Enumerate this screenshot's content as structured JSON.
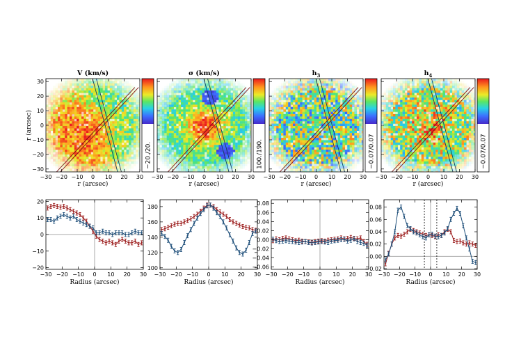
{
  "chart_data": {
    "maps": [
      {
        "title": "V (km/s)",
        "xlabel": "r (arcsec)",
        "ylabel": "r (arcsec)",
        "xlim": [
          -30,
          30
        ],
        "ylim": [
          -32,
          32
        ],
        "xticks": [
          "-30",
          "-20",
          "-10",
          "0",
          "10",
          "20",
          "30"
        ],
        "yticks": [
          "-30",
          "-20",
          "-10",
          "0",
          "10",
          "20",
          "30"
        ],
        "colorbar_label": "−20./20.",
        "pattern": "vel"
      },
      {
        "title": "σ (km/s)",
        "xlabel": "r (arcsec)",
        "ylabel": "",
        "xlim": [
          -30,
          30
        ],
        "ylim": [
          -32,
          32
        ],
        "xticks": [
          "-30",
          "-20",
          "-10",
          "0",
          "10",
          "20",
          "30"
        ],
        "yticks": [],
        "colorbar_label": "100./190.",
        "pattern": "sigma"
      },
      {
        "title": "h3",
        "xlabel": "r (arcsec)",
        "ylabel": "",
        "xlim": [
          -30,
          30
        ],
        "ylim": [
          -32,
          32
        ],
        "xticks": [
          "-30",
          "-20",
          "-10",
          "0",
          "10",
          "20",
          "30"
        ],
        "yticks": [],
        "colorbar_label": "−0.07/0.07",
        "pattern": "h3"
      },
      {
        "title": "h4",
        "xlabel": "r (arcsec)",
        "ylabel": "",
        "xlim": [
          -30,
          30
        ],
        "ylim": [
          -32,
          32
        ],
        "xticks": [
          "-30",
          "-20",
          "-10",
          "0",
          "10",
          "20",
          "30"
        ],
        "yticks": [],
        "colorbar_label": "−0.07/0.07",
        "pattern": "h4"
      }
    ],
    "profiles": [
      {
        "type": "line",
        "xlabel": "Radius (arcsec)",
        "xlim": [
          -30,
          30
        ],
        "ylim": [
          -21,
          21
        ],
        "xticks": [
          -30,
          -20,
          -10,
          0,
          10,
          20,
          30
        ],
        "yticks": [
          -20,
          -10,
          0,
          10,
          20
        ],
        "ytick_labels": [
          "-20",
          "-10",
          "0",
          "10",
          "20"
        ],
        "zero_line": true,
        "vlines": [],
        "series": [
          {
            "color": "#9b1b1b",
            "x": [
              -29,
              -27,
              -25,
              -23,
              -21,
              -19,
              -17,
              -15,
              -13,
              -11,
              -9,
              -7,
              -5,
              -3,
              -1,
              1,
              3,
              5,
              7,
              9,
              11,
              13,
              15,
              17,
              19,
              21,
              23,
              25,
              27,
              29
            ],
            "y": [
              16,
              17,
              17.5,
              17,
              16.5,
              17,
              16,
              15,
              14,
              13,
              12,
              10,
              8,
              5,
              2,
              -1,
              -3,
              -4,
              -5,
              -4,
              -5,
              -6,
              -4,
              -3,
              -4,
              -5,
              -5,
              -4,
              -6,
              -5
            ]
          },
          {
            "color": "#1f4f7a",
            "x": [
              -29,
              -27,
              -25,
              -23,
              -21,
              -19,
              -17,
              -15,
              -13,
              -11,
              -9,
              -7,
              -5,
              -3,
              -1,
              1,
              3,
              5,
              7,
              9,
              11,
              13,
              15,
              17,
              19,
              21,
              23,
              25,
              27,
              29
            ],
            "y": [
              9,
              9,
              8,
              10,
              11,
              12,
              11,
              10,
              11,
              9,
              8,
              7,
              6,
              5,
              4,
              1,
              1,
              2,
              1,
              1,
              0,
              1,
              1,
              1,
              0,
              0,
              1,
              2,
              1,
              1
            ]
          }
        ]
      },
      {
        "type": "line",
        "xlabel": "Radius (arcsec)",
        "xlim": [
          -30,
          30
        ],
        "ylim": [
          98,
          189
        ],
        "xticks": [
          -30,
          -20,
          -10,
          0,
          10,
          20,
          30
        ],
        "yticks": [
          100,
          120,
          140,
          160,
          180
        ],
        "ytick_labels": [
          "100",
          "120",
          "140",
          "160",
          "180"
        ],
        "zero_line": false,
        "vlines": [],
        "series": [
          {
            "color": "#9b1b1b",
            "x": [
              -29,
              -27,
              -25,
              -23,
              -21,
              -19,
              -17,
              -15,
              -13,
              -11,
              -9,
              -7,
              -5,
              -3,
              -1,
              1,
              3,
              5,
              7,
              9,
              11,
              13,
              15,
              17,
              19,
              21,
              23,
              25,
              27,
              29
            ],
            "y": [
              150,
              151,
              153,
              155,
              157,
              158,
              158,
              160,
              162,
              164,
              167,
              170,
              174,
              178,
              182,
              182,
              180,
              176,
              173,
              170,
              167,
              163,
              160,
              158,
              156,
              154,
              153,
              152,
              150,
              149
            ]
          },
          {
            "color": "#1f4f7a",
            "x": [
              -29,
              -27,
              -25,
              -23,
              -21,
              -19,
              -17,
              -15,
              -13,
              -11,
              -9,
              -7,
              -5,
              -3,
              -1,
              1,
              3,
              5,
              7,
              9,
              11,
              13,
              15,
              17,
              19,
              21,
              23,
              25,
              27,
              29
            ],
            "y": [
              145,
              141,
              136,
              128,
              122,
              120,
              124,
              133,
              142,
              150,
              158,
              165,
              171,
              176,
              181,
              182,
              178,
              172,
              167,
              160,
              152,
              143,
              135,
              126,
              120,
              118,
              123,
              133,
              145,
              148
            ]
          }
        ]
      },
      {
        "type": "line",
        "xlabel": "Radius (arcsec)",
        "xlim": [
          -30,
          30
        ],
        "ylim": [
          -0.065,
          0.088
        ],
        "xticks": [
          -30,
          -20,
          -10,
          0,
          10,
          20,
          30
        ],
        "yticks": [
          -0.06,
          -0.04,
          -0.02,
          0,
          0.02,
          0.04,
          0.06,
          0.08
        ],
        "ytick_labels": [
          "-0.06",
          "-0.04",
          "-0.02",
          "0.00",
          "0.02",
          "0.04",
          "0.06",
          "0.08"
        ],
        "zero_line": true,
        "vlines": [],
        "series": [
          {
            "color": "#9b1b1b",
            "x": [
              -29,
              -27,
              -25,
              -23,
              -21,
              -19,
              -17,
              -15,
              -13,
              -11,
              -9,
              -7,
              -5,
              -3,
              -1,
              1,
              3,
              5,
              7,
              9,
              11,
              13,
              15,
              17,
              19,
              21,
              23,
              25,
              27,
              29
            ],
            "y": [
              -0.002,
              0.002,
              0.0,
              0.003,
              0.004,
              0.002,
              0.0,
              -0.002,
              -0.001,
              -0.003,
              -0.004,
              -0.005,
              -0.006,
              -0.004,
              -0.003,
              -0.002,
              -0.003,
              -0.001,
              0.0,
              0.001,
              0.002,
              0.004,
              0.002,
              0.003,
              0.005,
              0.003,
              0.002,
              0.004,
              -0.004,
              -0.01
            ]
          },
          {
            "color": "#1f4f7a",
            "x": [
              -29,
              -27,
              -25,
              -23,
              -21,
              -19,
              -17,
              -15,
              -13,
              -11,
              -9,
              -7,
              -5,
              -3,
              -1,
              1,
              3,
              5,
              7,
              9,
              11,
              13,
              15,
              17,
              19,
              21,
              23,
              25,
              27,
              29
            ],
            "y": [
              0.001,
              -0.002,
              -0.004,
              -0.003,
              -0.002,
              -0.003,
              -0.004,
              -0.005,
              -0.006,
              -0.005,
              -0.004,
              -0.006,
              -0.007,
              -0.006,
              -0.005,
              -0.004,
              -0.005,
              -0.006,
              -0.003,
              -0.002,
              -0.001,
              0.0,
              0.001,
              -0.003,
              -0.001,
              0.002,
              -0.004,
              -0.006,
              -0.008,
              -0.012
            ]
          }
        ]
      },
      {
        "type": "line",
        "xlabel": "Radius (arcsec)",
        "xlim": [
          -30,
          30
        ],
        "ylim": [
          -0.021,
          0.092
        ],
        "xticks": [
          -30,
          -20,
          -10,
          0,
          10,
          20,
          30
        ],
        "yticks": [
          -0.02,
          0,
          0.02,
          0.04,
          0.06,
          0.08
        ],
        "ytick_labels": [
          "-0.02",
          "0.00",
          "0.02",
          "0.04",
          "0.06",
          "0.08"
        ],
        "zero_line": true,
        "vlines": [
          -4,
          4
        ],
        "series": [
          {
            "color": "#9b1b1b",
            "x": [
              -29,
              -27,
              -25,
              -23,
              -21,
              -19,
              -17,
              -15,
              -13,
              -11,
              -9,
              -7,
              -5,
              -3,
              -1,
              1,
              3,
              5,
              7,
              9,
              11,
              13,
              15,
              17,
              19,
              21,
              23,
              25,
              27,
              29
            ],
            "y": [
              -0.012,
              0.005,
              0.02,
              0.03,
              0.034,
              0.033,
              0.036,
              0.04,
              0.044,
              0.042,
              0.04,
              0.038,
              0.036,
              0.034,
              0.035,
              0.034,
              0.032,
              0.035,
              0.034,
              0.04,
              0.044,
              0.04,
              0.026,
              0.024,
              0.025,
              0.022,
              0.02,
              0.022,
              0.02,
              0.018
            ]
          },
          {
            "color": "#1f4f7a",
            "x": [
              -29,
              -27,
              -25,
              -23,
              -21,
              -19,
              -17,
              -15,
              -13,
              -11,
              -9,
              -7,
              -5,
              -3,
              -1,
              1,
              3,
              5,
              7,
              9,
              11,
              13,
              15,
              17,
              19,
              21,
              23,
              25,
              27,
              29
            ],
            "y": [
              -0.006,
              0.004,
              0.02,
              0.04,
              0.075,
              0.08,
              0.065,
              0.05,
              0.045,
              0.04,
              0.038,
              0.035,
              0.032,
              0.03,
              0.035,
              0.036,
              0.033,
              0.032,
              0.034,
              0.038,
              0.045,
              0.06,
              0.07,
              0.078,
              0.07,
              0.05,
              0.03,
              0.012,
              -0.008,
              -0.01
            ]
          }
        ]
      }
    ]
  }
}
